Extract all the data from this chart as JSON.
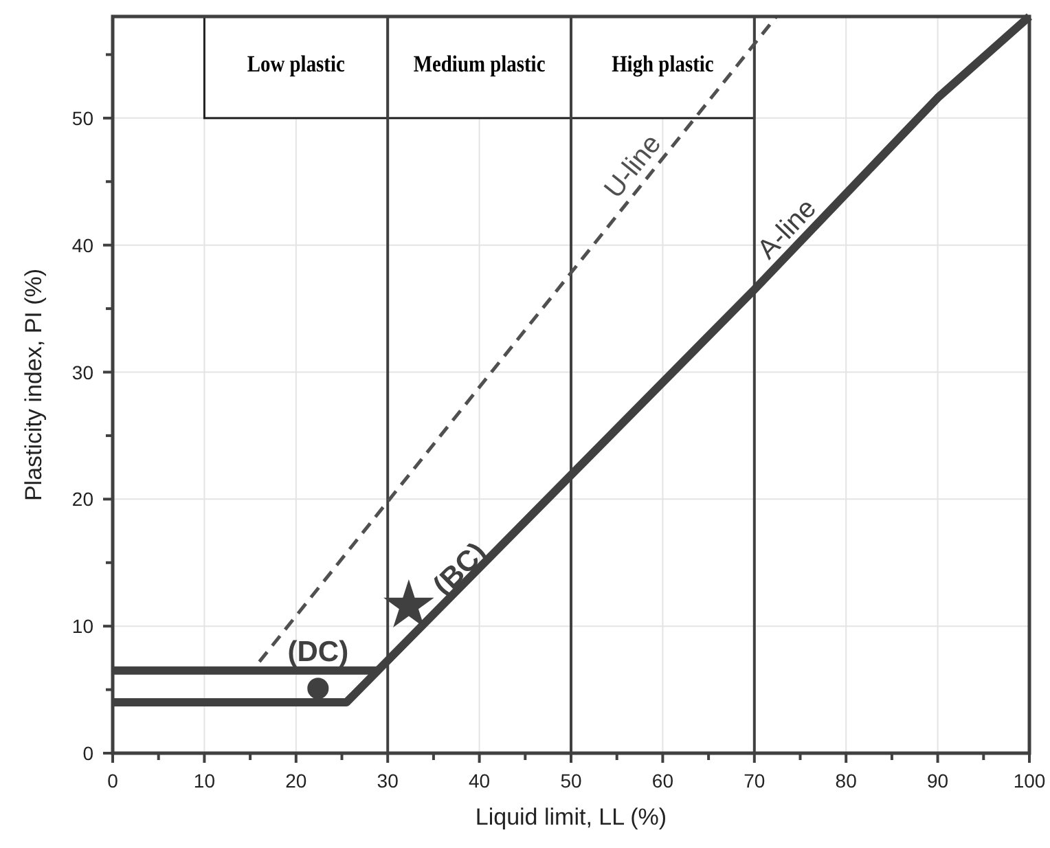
{
  "chart_data": {
    "type": "line",
    "xlabel": "Liquid limit, LL (%)",
    "ylabel": "Plasticity index, PI (%)",
    "xlim": [
      0,
      100
    ],
    "ylim": [
      0,
      58
    ],
    "xticks": [
      0,
      {
        "value": 5,
        "label": null
      },
      10,
      {
        "value": 15,
        "label": null
      },
      20,
      {
        "value": 25,
        "label": null
      },
      30,
      {
        "value": 35,
        "label": null
      },
      40,
      {
        "value": 45,
        "label": null
      },
      50,
      {
        "value": 55,
        "label": null
      },
      60,
      {
        "value": 65,
        "label": null
      },
      70,
      {
        "value": 75,
        "label": null
      },
      80,
      {
        "value": 85,
        "label": null
      },
      90,
      {
        "value": 95,
        "label": null
      },
      100
    ],
    "yticks": [
      0,
      {
        "value": 5,
        "label": null
      },
      10,
      {
        "value": 15,
        "label": null
      },
      20,
      {
        "value": 25,
        "label": null
      },
      30,
      {
        "value": 35,
        "label": null
      },
      40,
      {
        "value": 45,
        "label": null
      },
      50,
      {
        "value": 55,
        "label": null
      }
    ],
    "grid": true,
    "series": [
      {
        "name": "A-line",
        "color": "#404040",
        "line_style": "solid",
        "x": [
          0,
          25.5,
          29.6,
          50,
          70,
          90,
          100
        ],
        "values": [
          4,
          4,
          7,
          21.9,
          36.5,
          51.6,
          58
        ]
      },
      {
        "color": "#404040",
        "line_style": "solid",
        "x": [
          0,
          29
        ],
        "values": [
          6.5,
          6.5
        ]
      },
      {
        "name": "U-line",
        "color": "#505050",
        "line_style": "dashed",
        "x": [
          16,
          72.4
        ],
        "values": [
          7.2,
          58
        ]
      },
      {
        "name": "(DC)",
        "type": "scatter",
        "marker": "circle",
        "color": "#404040",
        "x": [
          22.4
        ],
        "values": [
          5.1
        ]
      },
      {
        "name": "(BC)",
        "type": "scatter",
        "marker": "star",
        "color": "#404040",
        "x": [
          32.3
        ],
        "values": [
          11.6
        ]
      }
    ],
    "ref_lines": [
      {
        "axis": "x",
        "value": 30,
        "color": "#404040"
      },
      {
        "axis": "x",
        "value": 50,
        "color": "#404040"
      },
      {
        "axis": "x",
        "value": 70,
        "color": "#404040"
      }
    ],
    "bands": [
      {
        "axis": "x",
        "from": 10,
        "to": 30,
        "label": "Low plastic"
      },
      {
        "axis": "x",
        "from": 30,
        "to": 50,
        "label": "Medium plastic"
      },
      {
        "axis": "x",
        "from": 50,
        "to": 70,
        "label": "High plastic"
      }
    ]
  }
}
